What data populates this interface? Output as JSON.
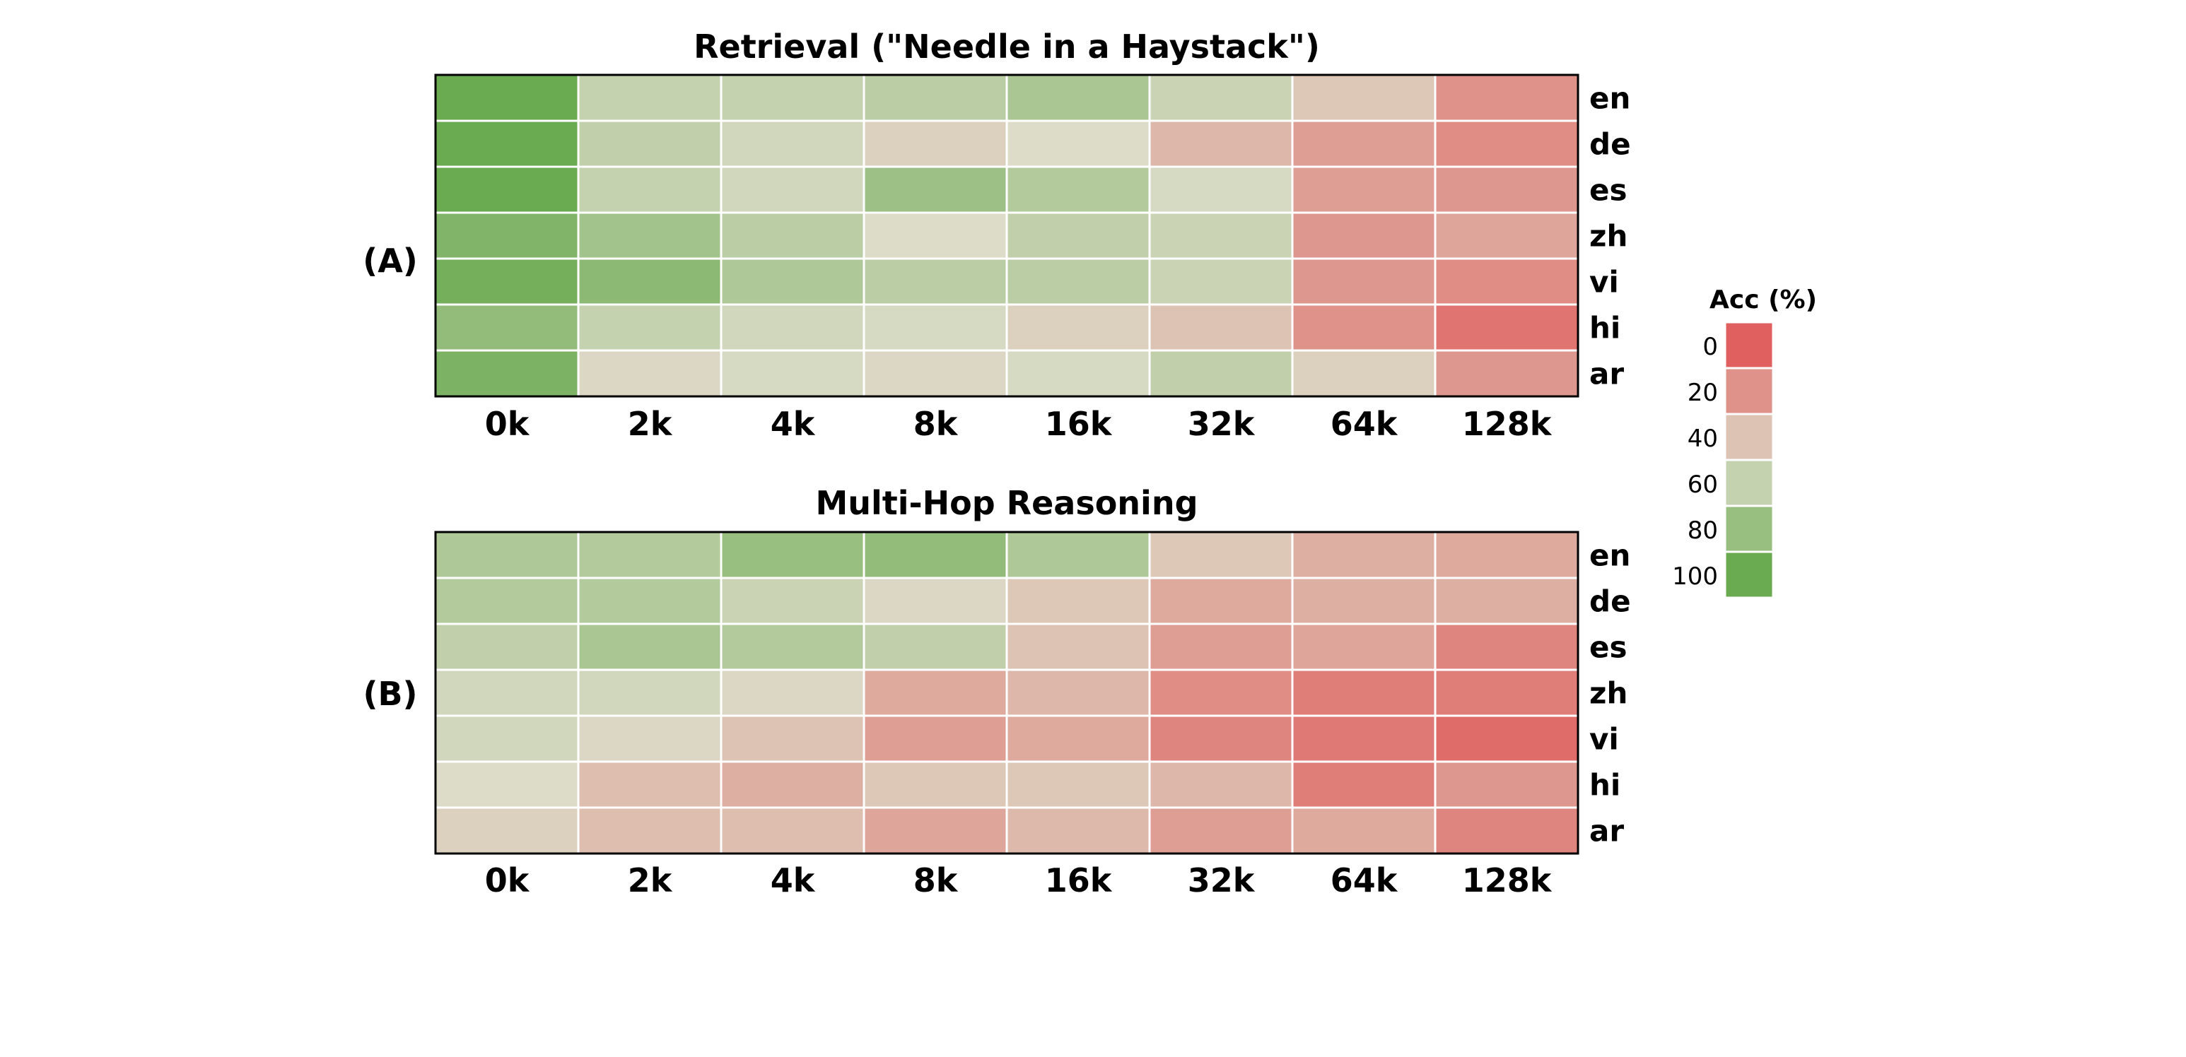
{
  "figure": {
    "legend_title": "Acc (%)",
    "legend_ticks": [
      "0",
      "20",
      "40",
      "60",
      "80",
      "100"
    ]
  },
  "chart_data": [
    {
      "type": "heatmap",
      "panel_label": "(A)",
      "title": "Retrieval (\"Needle in a Haystack\")",
      "x_categories": [
        "0k",
        "2k",
        "4k",
        "8k",
        "16k",
        "32k",
        "64k",
        "128k"
      ],
      "y_categories": [
        "en",
        "de",
        "es",
        "zh",
        "vi",
        "hi",
        "ar"
      ],
      "values": [
        [
          100,
          60,
          60,
          65,
          72,
          58,
          42,
          20
        ],
        [
          100,
          62,
          55,
          45,
          50,
          35,
          25,
          18
        ],
        [
          100,
          60,
          55,
          78,
          68,
          52,
          25,
          22
        ],
        [
          90,
          75,
          65,
          50,
          62,
          58,
          22,
          28
        ],
        [
          95,
          85,
          70,
          65,
          65,
          58,
          22,
          18
        ],
        [
          82,
          60,
          55,
          52,
          45,
          40,
          20,
          8
        ],
        [
          92,
          48,
          52,
          48,
          52,
          62,
          45,
          22
        ]
      ],
      "color_scale": {
        "min": 0,
        "max": 100,
        "low_color": "#e06060",
        "mid_color": "#dcdcc8",
        "high_color": "#6aaa50"
      }
    },
    {
      "type": "heatmap",
      "panel_label": "(B)",
      "title": "Multi-Hop Reasoning",
      "x_categories": [
        "0k",
        "2k",
        "4k",
        "8k",
        "16k",
        "32k",
        "64k",
        "128k"
      ],
      "y_categories": [
        "en",
        "de",
        "es",
        "zh",
        "vi",
        "hi",
        "ar"
      ],
      "values": [
        [
          70,
          68,
          80,
          82,
          70,
          42,
          32,
          30
        ],
        [
          68,
          68,
          58,
          48,
          42,
          30,
          32,
          32
        ],
        [
          62,
          72,
          68,
          62,
          40,
          25,
          28,
          15
        ],
        [
          55,
          55,
          48,
          30,
          35,
          18,
          12,
          12
        ],
        [
          55,
          48,
          40,
          25,
          30,
          15,
          10,
          5
        ],
        [
          50,
          38,
          32,
          42,
          42,
          35,
          12,
          22
        ],
        [
          45,
          38,
          38,
          28,
          36,
          25,
          30,
          15
        ]
      ],
      "color_scale": {
        "min": 0,
        "max": 100,
        "low_color": "#e06060",
        "mid_color": "#dcdcc8",
        "high_color": "#6aaa50"
      }
    }
  ]
}
